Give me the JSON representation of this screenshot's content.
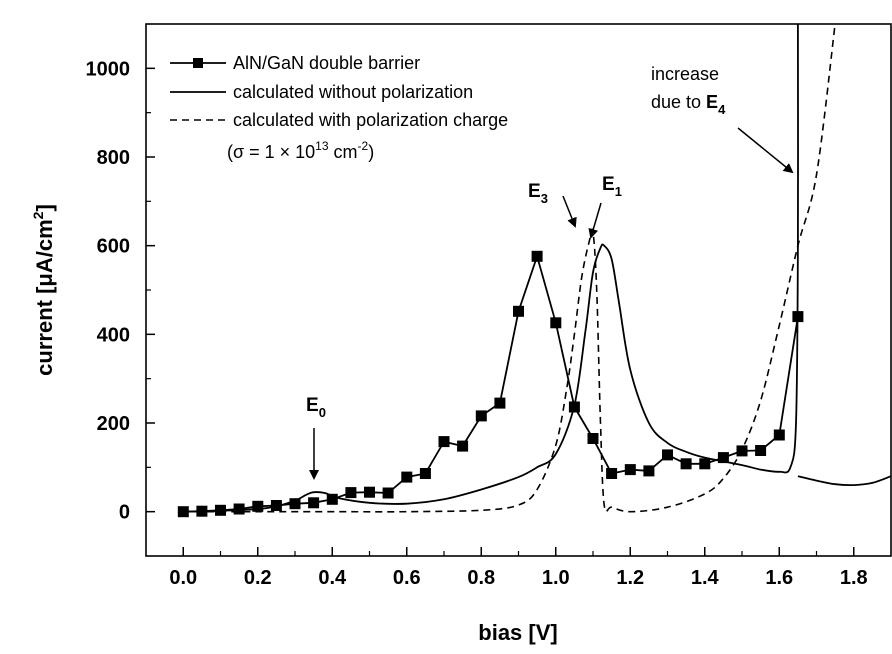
{
  "chart_data": {
    "type": "line",
    "xlabel": "bias [V]",
    "ylabel_main": "current [",
    "ylabel_mu": "μA/cm",
    "ylabel_sup": "2",
    "ylabel_end": "]",
    "xlim": [
      -0.1,
      1.9
    ],
    "ylim": [
      -100,
      1100
    ],
    "xticks": [
      "0.0",
      "0.2",
      "0.4",
      "0.6",
      "0.8",
      "1.0",
      "1.2",
      "1.4",
      "1.6",
      "1.8"
    ],
    "xtick_values": [
      0.0,
      0.2,
      0.4,
      0.6,
      0.8,
      1.0,
      1.2,
      1.4,
      1.6,
      1.8
    ],
    "yticks": [
      "0",
      "200",
      "400",
      "600",
      "800",
      "1000"
    ],
    "ytick_values": [
      0,
      200,
      400,
      600,
      800,
      1000
    ],
    "grid": false,
    "legend_position": "top-left",
    "series": [
      {
        "name": "AlN/GaN double barrier",
        "style": "line-with-square-markers",
        "color": "#000000",
        "x": [
          0.0,
          0.05,
          0.1,
          0.15,
          0.2,
          0.25,
          0.3,
          0.35,
          0.4,
          0.45,
          0.5,
          0.55,
          0.6,
          0.65,
          0.7,
          0.75,
          0.8,
          0.85,
          0.9,
          0.95,
          1.0,
          1.05,
          1.1,
          1.15,
          1.2,
          1.25,
          1.3,
          1.35,
          1.4,
          1.45,
          1.5,
          1.55,
          1.6,
          1.65
        ],
        "y": [
          0,
          1,
          3,
          6,
          12,
          14,
          18,
          20,
          28,
          43,
          44,
          42,
          78,
          86,
          158,
          148,
          216,
          245,
          452,
          576,
          426,
          236,
          165,
          86,
          95,
          92,
          128,
          108,
          108,
          122,
          137,
          138,
          173,
          440
        ]
      },
      {
        "name": "calculated without polarization",
        "style": "solid-line",
        "color": "#000000",
        "x": [
          0.0,
          0.1,
          0.2,
          0.25,
          0.3,
          0.33,
          0.35,
          0.38,
          0.42,
          0.5,
          0.6,
          0.7,
          0.8,
          0.9,
          0.95,
          1.0,
          1.05,
          1.08,
          1.1,
          1.12,
          1.13,
          1.15,
          1.17,
          1.2,
          1.25,
          1.3,
          1.35,
          1.4,
          1.5,
          1.55,
          1.6,
          1.63,
          1.645,
          1.65,
          1.65
        ],
        "y": [
          0,
          2,
          6,
          12,
          25,
          38,
          44,
          42,
          30,
          20,
          18,
          28,
          50,
          78,
          100,
          130,
          240,
          410,
          540,
          595,
          600,
          570,
          470,
          320,
          200,
          155,
          135,
          122,
          105,
          95,
          90,
          100,
          200,
          600,
          1100
        ],
        "tail_x": [
          1.65,
          1.7,
          1.75,
          1.8,
          1.85,
          1.9
        ],
        "tail_y": [
          80,
          70,
          62,
          60,
          65,
          80
        ]
      },
      {
        "name": "calculated with polarization charge",
        "style": "dashed-line",
        "color": "#000000",
        "x": [
          0.0,
          0.2,
          0.4,
          0.6,
          0.8,
          0.9,
          0.95,
          1.0,
          1.03,
          1.05,
          1.07,
          1.09,
          1.1,
          1.11,
          1.12,
          1.13,
          1.15,
          1.2,
          1.3,
          1.4,
          1.45,
          1.5,
          1.55,
          1.6,
          1.65,
          1.7,
          1.75
        ],
        "y": [
          0,
          0,
          0,
          0,
          3,
          15,
          50,
          150,
          280,
          400,
          530,
          610,
          630,
          500,
          200,
          15,
          10,
          0,
          10,
          40,
          75,
          140,
          250,
          420,
          600,
          760,
          1100
        ]
      }
    ],
    "legend_formula": {
      "open": "(σ = 1 × 10",
      "exp1": "13",
      "mid": " cm",
      "exp2": "-2",
      "close": ")"
    },
    "annotations": {
      "e0": {
        "base": "E",
        "sub": "0"
      },
      "e3": {
        "base": "E",
        "sub": "3"
      },
      "e1": {
        "base": "E",
        "sub": "1"
      },
      "increase_line1": "increase",
      "increase_line2": "due to ",
      "e4": {
        "base": "E",
        "sub": "4"
      }
    }
  }
}
